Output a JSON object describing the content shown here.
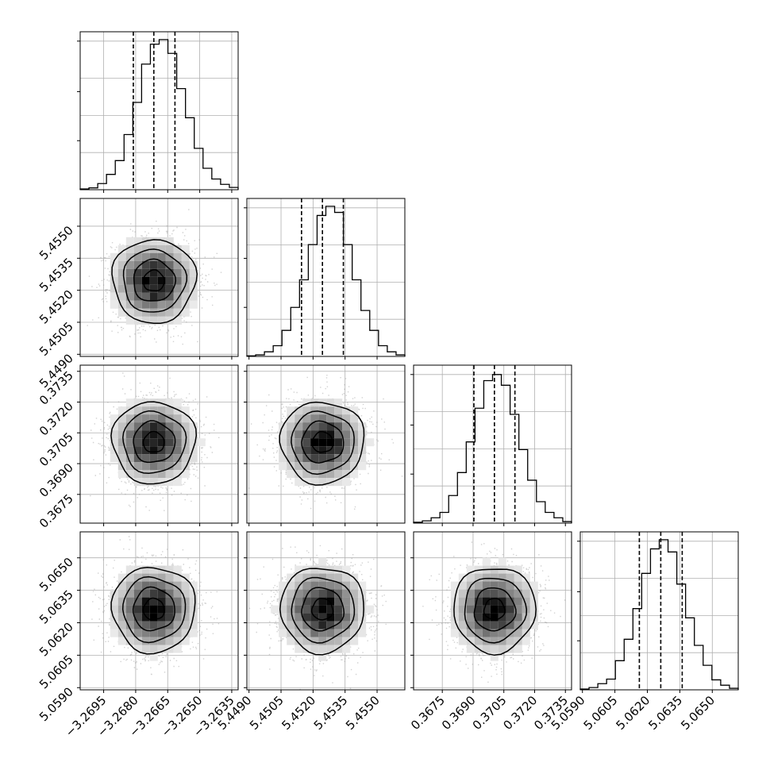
{
  "chart_data": {
    "type": "corner",
    "grid": true,
    "params": [
      {
        "ticks": [
          "−3.2695",
          "−3.2680",
          "−3.2665",
          "−3.2650",
          "−3.2635"
        ],
        "tick_values": [
          -3.2695,
          -3.268,
          -3.2665,
          -3.265,
          -3.2635
        ],
        "range": [
          -3.2706,
          -3.2632
        ],
        "quantiles": [
          -3.26811,
          -3.26715,
          -3.26616
        ]
      },
      {
        "ticks": [
          "5.4490",
          "5.4505",
          "5.4520",
          "5.4535",
          "5.4550"
        ],
        "tick_values": [
          5.449,
          5.4505,
          5.452,
          5.4535,
          5.455
        ],
        "range": [
          5.4489,
          5.4563
        ],
        "quantiles": [
          5.45146,
          5.45244,
          5.45342
        ]
      },
      {
        "ticks": [
          "0.3675",
          "0.3690",
          "0.3705",
          "0.3720",
          "0.3735"
        ],
        "tick_values": [
          0.3675,
          0.369,
          0.3705,
          0.372,
          0.3735
        ],
        "range": [
          0.3661,
          0.3738
        ],
        "quantiles": [
          0.36904,
          0.37004,
          0.37104
        ]
      },
      {
        "ticks": [
          "5.0590",
          "5.0605",
          "5.0620",
          "5.0635",
          "5.0650"
        ],
        "tick_values": [
          5.059,
          5.0605,
          5.062,
          5.0635,
          5.065
        ],
        "range": [
          5.0589,
          5.0662
        ],
        "quantiles": [
          5.06163,
          5.06262,
          5.06361
        ]
      }
    ],
    "histograms": [
      [
        0.005,
        0.012,
        0.04,
        0.1,
        0.19,
        0.36,
        0.57,
        0.82,
        0.95,
        0.98,
        0.89,
        0.66,
        0.47,
        0.27,
        0.14,
        0.07,
        0.035,
        0.015
      ],
      [
        0.004,
        0.01,
        0.03,
        0.07,
        0.17,
        0.32,
        0.5,
        0.73,
        0.92,
        0.98,
        0.94,
        0.73,
        0.5,
        0.3,
        0.17,
        0.07,
        0.03,
        0.01
      ],
      [
        0.006,
        0.015,
        0.035,
        0.07,
        0.18,
        0.33,
        0.53,
        0.75,
        0.93,
        0.97,
        0.9,
        0.71,
        0.48,
        0.28,
        0.14,
        0.07,
        0.035,
        0.01
      ],
      [
        0.005,
        0.015,
        0.04,
        0.07,
        0.19,
        0.33,
        0.53,
        0.76,
        0.92,
        0.98,
        0.9,
        0.69,
        0.47,
        0.29,
        0.16,
        0.065,
        0.03,
        0.01
      ]
    ],
    "correlations": {
      "1-0": 0.0,
      "2-0": 0.0,
      "2-1": 0.0,
      "3-0": 0.0,
      "3-1": 0.0,
      "3-2": 0.0
    },
    "contour_levels_sigma": [
      0.5,
      1.0,
      1.5,
      2.0
    ]
  }
}
